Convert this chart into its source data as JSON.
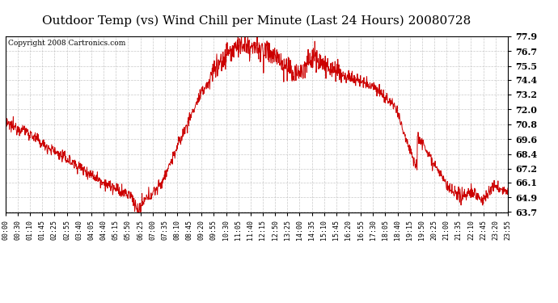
{
  "title": "Outdoor Temp (vs) Wind Chill per Minute (Last 24 Hours) 20080728",
  "copyright_text": "Copyright 2008 Cartronics.com",
  "line_color": "#cc0000",
  "background_color": "#ffffff",
  "grid_color": "#bbbbbb",
  "ylim": [
    63.7,
    77.9
  ],
  "yticks": [
    63.7,
    64.9,
    66.1,
    67.2,
    68.4,
    69.6,
    70.8,
    72.0,
    73.2,
    74.4,
    75.5,
    76.7,
    77.9
  ],
  "xtick_labels": [
    "00:00",
    "00:30",
    "01:10",
    "01:45",
    "02:25",
    "02:55",
    "03:40",
    "04:05",
    "04:40",
    "05:15",
    "05:50",
    "06:25",
    "07:00",
    "07:35",
    "08:10",
    "08:45",
    "09:20",
    "09:55",
    "10:30",
    "11:05",
    "11:40",
    "12:15",
    "12:50",
    "13:25",
    "14:00",
    "14:35",
    "15:10",
    "15:45",
    "16:20",
    "16:55",
    "17:30",
    "18:05",
    "18:40",
    "19:15",
    "19:50",
    "20:25",
    "21:00",
    "21:35",
    "22:10",
    "22:45",
    "23:20",
    "23:55"
  ],
  "title_fontsize": 11,
  "copyright_fontsize": 6.5,
  "ytick_fontsize": 8,
  "xtick_fontsize": 6
}
